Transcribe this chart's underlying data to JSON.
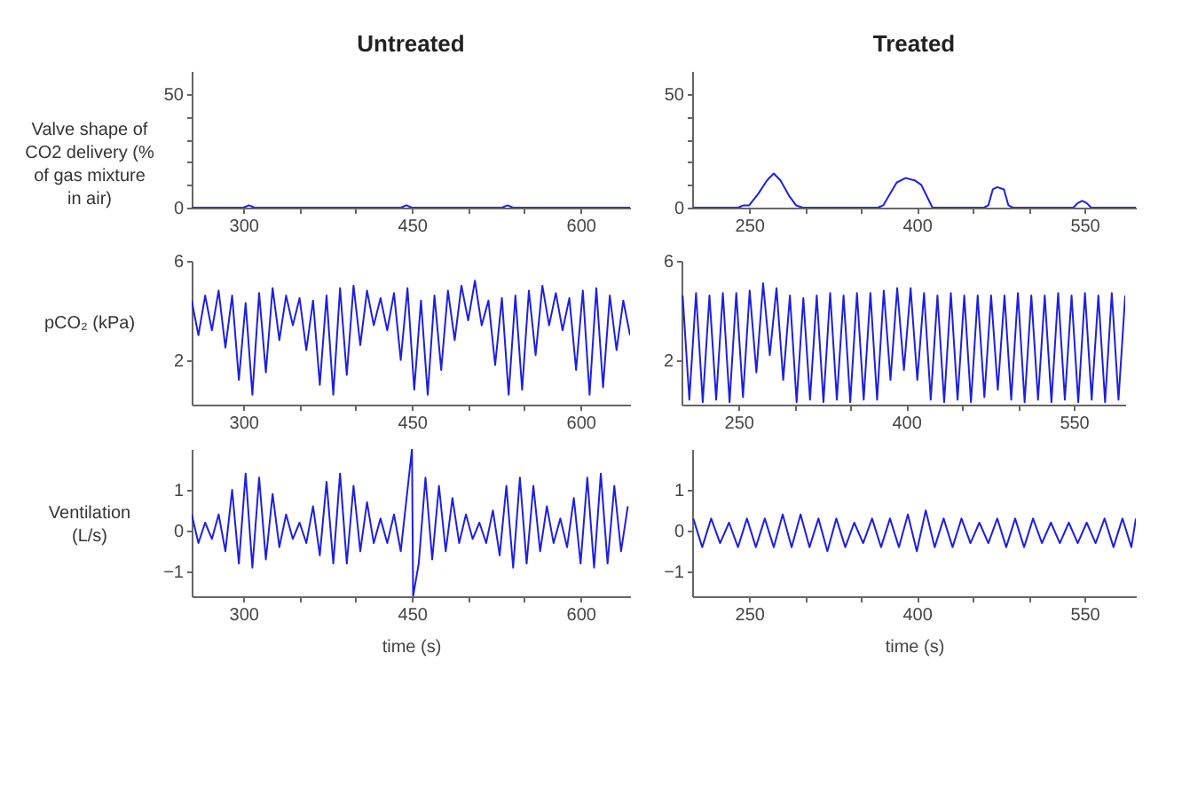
{
  "chart_data": [
    {
      "type": "line",
      "title": "Untreated",
      "ylabel": "Valve shape of CO2 delivery (% of gas mixture in air)",
      "xlim": [
        254,
        644
      ],
      "ylim": [
        0,
        60
      ],
      "xticks": [
        300,
        {
          "value": 350,
          "label": null
        },
        {
          "value": 400,
          "label": null
        },
        450,
        {
          "value": 500,
          "label": null
        },
        {
          "value": 550,
          "label": null
        },
        600
      ],
      "yticks": [
        0,
        {
          "value": 10,
          "label": null
        },
        {
          "value": 20,
          "label": null
        },
        {
          "value": 30,
          "label": null
        },
        {
          "value": 40,
          "label": null
        },
        50
      ],
      "series": [
        {
          "color": "#1f1fe0",
          "x": [
            254,
            300,
            305,
            310,
            440,
            445,
            450,
            530,
            535,
            540,
            644
          ],
          "values": [
            0,
            0,
            1,
            0,
            0,
            1,
            0,
            0,
            1,
            0,
            0
          ]
        }
      ]
    },
    {
      "type": "line",
      "title": "Treated",
      "xlim": [
        199,
        596
      ],
      "ylim": [
        0,
        60
      ],
      "xticks": [
        250,
        {
          "value": 300,
          "label": null
        },
        {
          "value": 350,
          "label": null
        },
        400,
        {
          "value": 450,
          "label": null
        },
        {
          "value": 500,
          "label": null
        },
        550
      ],
      "yticks": [
        0,
        {
          "value": 10,
          "label": null
        },
        {
          "value": 20,
          "label": null
        },
        {
          "value": 30,
          "label": null
        },
        {
          "value": 40,
          "label": null
        },
        50
      ],
      "series": [
        {
          "color": "#1f1fe0",
          "x": [
            200,
            240,
            245,
            250,
            258,
            266,
            272,
            278,
            286,
            292,
            298,
            365,
            370,
            376,
            382,
            390,
            398,
            404,
            410,
            414,
            460,
            464,
            468,
            472,
            478,
            482,
            486,
            540,
            544,
            548,
            552,
            556,
            596
          ],
          "values": [
            0,
            0,
            1,
            1,
            6,
            12,
            15,
            12,
            5,
            1,
            0,
            0,
            1,
            6,
            11,
            13,
            12,
            10,
            4,
            0,
            0,
            1,
            8,
            9,
            8,
            1,
            0,
            0,
            2,
            3,
            2,
            0,
            0
          ]
        }
      ]
    },
    {
      "type": "line",
      "ylabel": "pCO₂ (kPa)",
      "xlim": [
        254,
        644
      ],
      "ylim": [
        0.2,
        6
      ],
      "xticks": [
        300,
        {
          "value": 350,
          "label": null
        },
        {
          "value": 400,
          "label": null
        },
        450,
        {
          "value": 500,
          "label": null
        },
        {
          "value": 550,
          "label": null
        },
        600
      ],
      "yticks": [
        2,
        6
      ],
      "series": [
        {
          "color": "#1f1fe0",
          "x": [
            254,
            260,
            266,
            272,
            278,
            284,
            290,
            296,
            302,
            308,
            314,
            320,
            326,
            332,
            338,
            344,
            350,
            356,
            362,
            368,
            374,
            380,
            386,
            392,
            398,
            404,
            410,
            416,
            422,
            428,
            434,
            440,
            446,
            452,
            458,
            464,
            470,
            476,
            482,
            488,
            494,
            500,
            506,
            512,
            518,
            524,
            530,
            536,
            542,
            548,
            554,
            560,
            566,
            572,
            578,
            584,
            590,
            596,
            602,
            608,
            614,
            620,
            626,
            632,
            638,
            644
          ],
          "values": [
            4.4,
            3.0,
            4.6,
            3.2,
            4.8,
            2.5,
            4.6,
            1.2,
            4.3,
            0.6,
            4.7,
            1.5,
            4.9,
            2.8,
            4.6,
            3.4,
            4.5,
            2.4,
            4.4,
            1.0,
            4.6,
            0.6,
            4.9,
            1.4,
            5.0,
            2.6,
            4.8,
            3.4,
            4.5,
            3.2,
            4.7,
            2.0,
            4.9,
            0.8,
            4.4,
            0.6,
            4.6,
            1.6,
            4.8,
            2.8,
            5.0,
            3.6,
            5.2,
            3.4,
            4.4,
            1.8,
            4.5,
            0.6,
            4.6,
            0.8,
            4.8,
            2.2,
            5.0,
            3.4,
            4.7,
            3.2,
            4.5,
            1.6,
            4.8,
            0.6,
            4.9,
            0.9,
            4.6,
            2.4,
            4.4,
            3.0
          ]
        }
      ]
    },
    {
      "type": "line",
      "xlim": [
        199,
        596
      ],
      "ylim": [
        0.2,
        6
      ],
      "xticks": [
        250,
        {
          "value": 300,
          "label": null
        },
        {
          "value": 350,
          "label": null
        },
        400,
        {
          "value": 450,
          "label": null
        },
        {
          "value": 500,
          "label": null
        },
        550
      ],
      "yticks": [
        2,
        6
      ],
      "series": [
        {
          "color": "#1f1fe0",
          "x": [
            200,
            206,
            212,
            218,
            224,
            230,
            236,
            242,
            248,
            254,
            260,
            266,
            272,
            278,
            284,
            290,
            296,
            302,
            308,
            314,
            320,
            326,
            332,
            338,
            344,
            350,
            356,
            362,
            368,
            374,
            380,
            386,
            392,
            398,
            404,
            410,
            416,
            422,
            428,
            434,
            440,
            446,
            452,
            458,
            464,
            470,
            476,
            482,
            488,
            494,
            500,
            506,
            512,
            518,
            524,
            530,
            536,
            542,
            548,
            554,
            560,
            566,
            572,
            578,
            584,
            590,
            596
          ],
          "values": [
            4.6,
            0.4,
            4.7,
            0.3,
            4.6,
            0.4,
            4.7,
            0.3,
            4.7,
            0.5,
            4.8,
            1.5,
            5.1,
            2.2,
            4.9,
            1.2,
            4.6,
            0.3,
            4.5,
            0.4,
            4.6,
            0.3,
            4.7,
            0.4,
            4.6,
            0.3,
            4.7,
            0.4,
            4.7,
            0.4,
            4.8,
            1.2,
            4.9,
            1.6,
            4.9,
            1.2,
            4.7,
            0.4,
            4.6,
            0.3,
            4.7,
            0.4,
            4.6,
            0.3,
            4.6,
            0.5,
            4.6,
            0.8,
            4.6,
            0.4,
            4.7,
            0.3,
            4.6,
            0.4,
            4.6,
            0.3,
            4.7,
            0.4,
            4.6,
            0.3,
            4.7,
            0.4,
            4.6,
            0.3,
            4.7,
            0.4,
            4.6
          ]
        }
      ]
    },
    {
      "type": "line",
      "ylabel": "Ventilation (L/s)",
      "xlabel": "time (s)",
      "xlim": [
        254,
        644
      ],
      "ylim": [
        -1.6,
        2
      ],
      "xticks": [
        300,
        {
          "value": 350,
          "label": null
        },
        {
          "value": 400,
          "label": null
        },
        450,
        {
          "value": 500,
          "label": null
        },
        {
          "value": 550,
          "label": null
        },
        600
      ],
      "yticks": [
        -1,
        0,
        1
      ],
      "series": [
        {
          "color": "#1f1fe0",
          "x": [
            254,
            260,
            266,
            272,
            278,
            284,
            290,
            296,
            302,
            308,
            314,
            320,
            326,
            332,
            338,
            344,
            350,
            356,
            362,
            368,
            374,
            380,
            386,
            392,
            398,
            404,
            410,
            416,
            422,
            428,
            434,
            440,
            446,
            450,
            451,
            456,
            462,
            468,
            474,
            480,
            486,
            492,
            498,
            504,
            510,
            516,
            522,
            528,
            534,
            540,
            546,
            552,
            558,
            564,
            570,
            576,
            582,
            588,
            594,
            600,
            606,
            612,
            618,
            624,
            630,
            636,
            642
          ],
          "values": [
            0.4,
            -0.3,
            0.2,
            -0.2,
            0.4,
            -0.5,
            1.0,
            -0.8,
            1.4,
            -0.9,
            1.3,
            -0.7,
            0.9,
            -0.4,
            0.4,
            -0.2,
            0.2,
            -0.3,
            0.6,
            -0.6,
            1.2,
            -0.8,
            1.4,
            -0.8,
            1.1,
            -0.5,
            0.7,
            -0.3,
            0.3,
            -0.3,
            0.4,
            -0.5,
            1.0,
            2.0,
            -1.6,
            -0.8,
            1.3,
            -0.7,
            1.1,
            -0.5,
            0.8,
            -0.3,
            0.4,
            -0.2,
            0.2,
            -0.3,
            0.5,
            -0.6,
            1.1,
            -0.9,
            1.3,
            -0.8,
            1.1,
            -0.5,
            0.6,
            -0.3,
            0.3,
            -0.4,
            0.8,
            -0.8,
            1.3,
            -0.9,
            1.4,
            -0.8,
            1.1,
            -0.5,
            0.6
          ]
        }
      ]
    },
    {
      "type": "line",
      "xlabel": "time (s)",
      "xlim": [
        199,
        596
      ],
      "ylim": [
        -1.6,
        2
      ],
      "xticks": [
        250,
        {
          "value": 300,
          "label": null
        },
        {
          "value": 350,
          "label": null
        },
        400,
        {
          "value": 450,
          "label": null
        },
        {
          "value": 500,
          "label": null
        },
        550
      ],
      "yticks": [
        -1,
        0,
        1
      ],
      "series": [
        {
          "color": "#1f1fe0",
          "x": [
            200,
            208,
            216,
            224,
            232,
            240,
            248,
            256,
            264,
            272,
            280,
            288,
            296,
            304,
            312,
            320,
            328,
            336,
            344,
            352,
            360,
            368,
            376,
            384,
            392,
            400,
            408,
            416,
            424,
            432,
            440,
            448,
            456,
            464,
            472,
            480,
            488,
            496,
            504,
            512,
            520,
            528,
            536,
            544,
            552,
            560,
            568,
            576,
            584,
            592,
            596
          ],
          "values": [
            0.3,
            -0.4,
            0.3,
            -0.3,
            0.2,
            -0.4,
            0.3,
            -0.4,
            0.3,
            -0.4,
            0.4,
            -0.4,
            0.4,
            -0.4,
            0.3,
            -0.5,
            0.3,
            -0.4,
            0.2,
            -0.3,
            0.3,
            -0.4,
            0.3,
            -0.4,
            0.4,
            -0.5,
            0.5,
            -0.4,
            0.3,
            -0.4,
            0.3,
            -0.3,
            0.2,
            -0.3,
            0.3,
            -0.4,
            0.3,
            -0.4,
            0.3,
            -0.3,
            0.2,
            -0.3,
            0.2,
            -0.3,
            0.2,
            -0.3,
            0.3,
            -0.4,
            0.3,
            -0.4,
            0.3
          ]
        }
      ]
    }
  ]
}
